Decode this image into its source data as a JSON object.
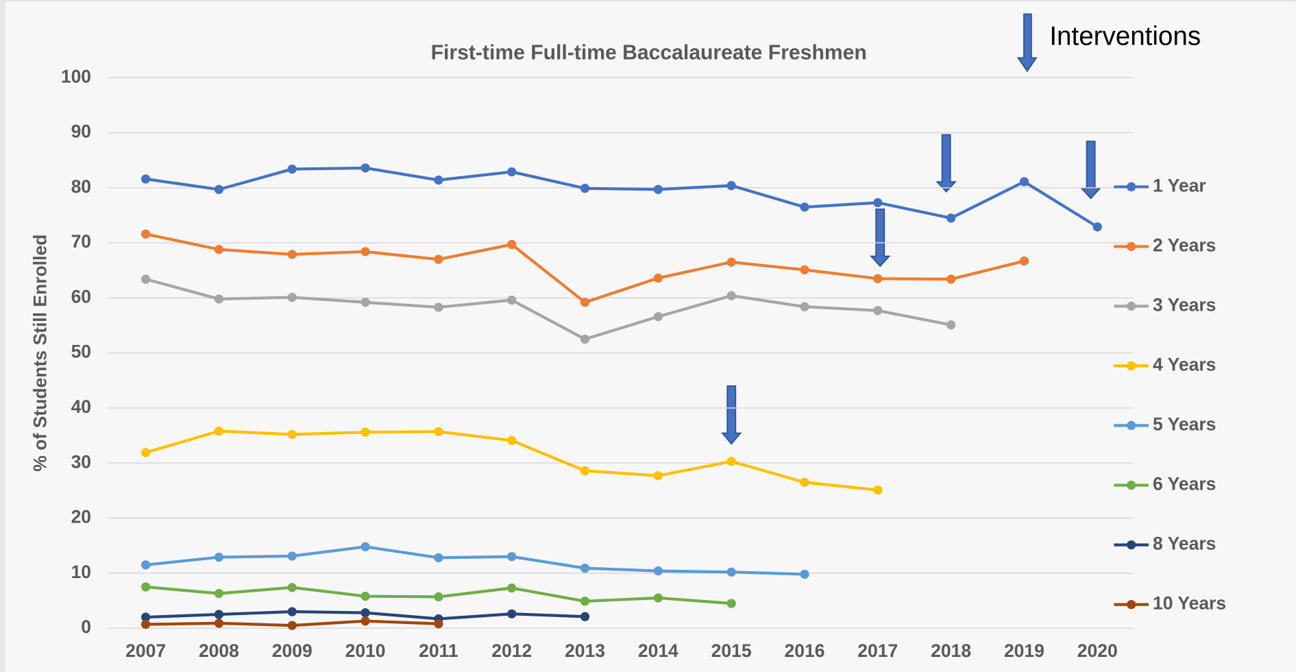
{
  "chart_data": {
    "type": "line",
    "title": "First-time Full-time Baccalaureate Freshmen",
    "y_label": "% of Students Still Enrolled",
    "annotation": "Interventions",
    "categories": [
      "2007",
      "2008",
      "2009",
      "2010",
      "2011",
      "2012",
      "2013",
      "2014",
      "2015",
      "2016",
      "2017",
      "2018",
      "2019",
      "2020"
    ],
    "ylim": [
      0,
      100
    ],
    "yticks": [
      0,
      10,
      20,
      30,
      40,
      50,
      60,
      70,
      80,
      90,
      100
    ],
    "grid": true,
    "legend": "right",
    "series": [
      {
        "name": "1 Year",
        "color": "#4472c4",
        "values": [
          81.6,
          79.7,
          83.4,
          83.6,
          81.4,
          82.9,
          79.9,
          79.7,
          80.4,
          76.5,
          77.3,
          74.5,
          81.1,
          72.9
        ]
      },
      {
        "name": "2 Years",
        "color": "#ed7d31",
        "values": [
          71.6,
          68.8,
          67.9,
          68.4,
          67.0,
          69.7,
          59.2,
          63.6,
          66.5,
          65.1,
          63.5,
          63.4,
          66.7,
          null
        ]
      },
      {
        "name": "3 Years",
        "color": "#a5a5a5",
        "values": [
          63.4,
          59.8,
          60.1,
          59.2,
          58.3,
          59.6,
          52.5,
          56.6,
          60.4,
          58.4,
          57.7,
          55.1,
          null,
          null
        ]
      },
      {
        "name": "4 Years",
        "color": "#ffc000",
        "values": [
          31.9,
          35.8,
          35.2,
          35.6,
          35.7,
          34.1,
          28.6,
          27.7,
          30.3,
          26.5,
          25.1,
          null,
          null,
          null
        ]
      },
      {
        "name": "5 Years",
        "color": "#5b9bd5",
        "values": [
          11.5,
          12.9,
          13.1,
          14.8,
          12.8,
          13.0,
          10.9,
          10.4,
          10.2,
          9.8,
          null,
          null,
          null,
          null
        ]
      },
      {
        "name": "6 Years",
        "color": "#70ad47",
        "values": [
          7.5,
          6.3,
          7.4,
          5.8,
          5.7,
          7.3,
          4.9,
          5.5,
          4.5,
          null,
          null,
          null,
          null,
          null
        ]
      },
      {
        "name": "8 Years",
        "color": "#264478",
        "values": [
          2.0,
          2.5,
          3.0,
          2.8,
          1.7,
          2.6,
          2.1,
          null,
          null,
          null,
          null,
          null,
          null,
          null
        ]
      },
      {
        "name": "10 Years",
        "color": "#9e480e",
        "values": [
          0.7,
          0.9,
          0.5,
          1.3,
          0.8,
          null,
          null,
          null,
          null,
          null,
          null,
          null,
          null,
          null
        ]
      }
    ]
  }
}
